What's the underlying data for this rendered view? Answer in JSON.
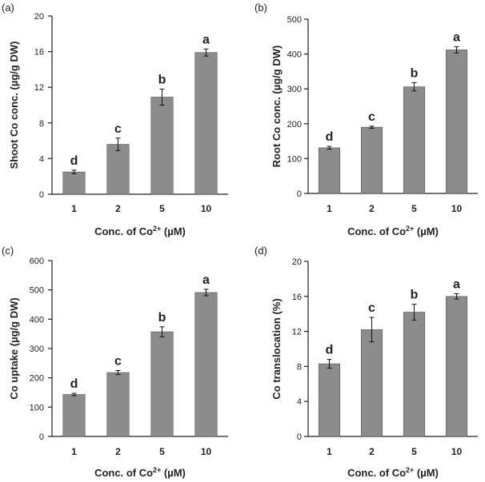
{
  "bar_color": "#8c8c8c",
  "axis_color": "#222222",
  "xlabel_base": "Conc. of Co",
  "xlabel_sup": "2+",
  "xlabel_unit": " (µM)",
  "chart_data": [
    {
      "panel": "(a)",
      "type": "bar",
      "ylabel": "Shoot Co conc. (µg/g DW)",
      "xlabel": "Conc. of Co2+ (µM)",
      "categories": [
        "1",
        "2",
        "5",
        "10"
      ],
      "values": [
        2.5,
        5.6,
        10.9,
        15.9
      ],
      "errors": [
        0.2,
        0.7,
        0.9,
        0.4
      ],
      "letters": [
        "d",
        "c",
        "b",
        "a"
      ],
      "ylim": [
        0,
        20
      ],
      "yticks": [
        0,
        4,
        8,
        12,
        16,
        20
      ]
    },
    {
      "panel": "(b)",
      "type": "bar",
      "ylabel": "Root Co conc. (µg/g DW)",
      "xlabel": "Conc. of Co2+ (µM)",
      "categories": [
        "1",
        "2",
        "5",
        "10"
      ],
      "values": [
        131,
        190,
        306,
        412
      ],
      "errors": [
        4,
        3,
        12,
        9
      ],
      "letters": [
        "d",
        "c",
        "b",
        "a"
      ],
      "ylim": [
        0,
        500
      ],
      "yticks": [
        0,
        100,
        200,
        300,
        400,
        500
      ]
    },
    {
      "panel": "(c)",
      "type": "bar",
      "ylabel": "Co uptake (µg/g DW)",
      "xlabel": "Conc. of Co2+ (µM)",
      "categories": [
        "1",
        "2",
        "5",
        "10"
      ],
      "values": [
        143,
        218,
        357,
        491
      ],
      "errors": [
        4,
        7,
        17,
        11
      ],
      "letters": [
        "d",
        "c",
        "b",
        "a"
      ],
      "ylim": [
        0,
        600
      ],
      "yticks": [
        0,
        100,
        200,
        300,
        400,
        500,
        600
      ]
    },
    {
      "panel": "(d)",
      "type": "bar",
      "ylabel": "Co translocation (%)",
      "xlabel": "Conc. of Co2+ (µM)",
      "categories": [
        "1",
        "2",
        "5",
        "10"
      ],
      "values": [
        8.3,
        12.2,
        14.2,
        16.0
      ],
      "errors": [
        0.5,
        1.4,
        0.9,
        0.3
      ],
      "letters": [
        "d",
        "c",
        "b",
        "a"
      ],
      "ylim": [
        0,
        20
      ],
      "yticks": [
        0,
        4,
        8,
        12,
        16,
        20
      ]
    }
  ]
}
